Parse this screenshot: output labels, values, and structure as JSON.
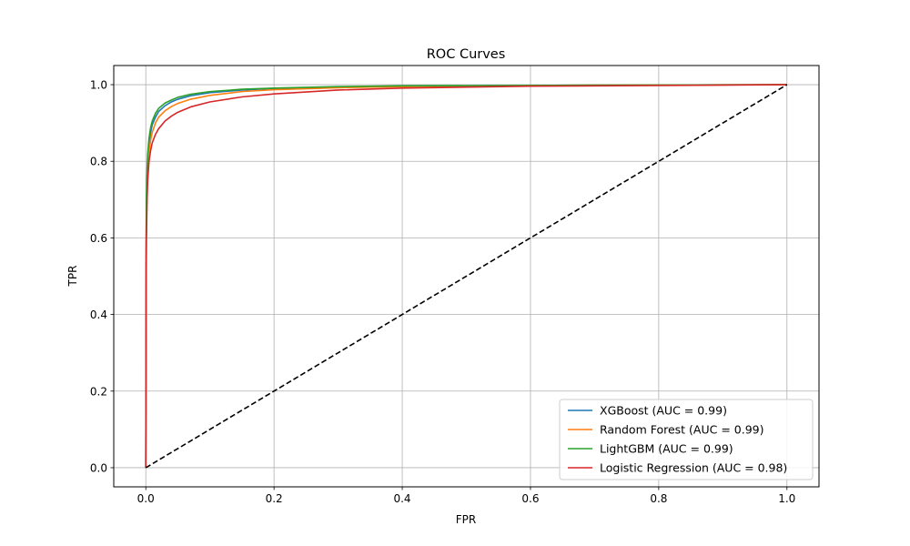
{
  "chart_data": {
    "type": "line",
    "title": "ROC Curves",
    "xlabel": "FPR",
    "ylabel": "TPR",
    "xlim": [
      -0.05,
      1.05
    ],
    "ylim": [
      -0.05,
      1.05
    ],
    "xticks": [
      0.0,
      0.2,
      0.4,
      0.6,
      0.8,
      1.0
    ],
    "yticks": [
      0.0,
      0.2,
      0.4,
      0.6,
      0.8,
      1.0
    ],
    "xtick_labels": [
      "0.0",
      "0.2",
      "0.4",
      "0.6",
      "0.8",
      "1.0"
    ],
    "ytick_labels": [
      "0.0",
      "0.2",
      "0.4",
      "0.6",
      "0.8",
      "1.0"
    ],
    "grid": true,
    "legend_position": "lower-right",
    "series": [
      {
        "name": "XGBoost (AUC = 0.99)",
        "color": "#1f77b4",
        "x": [
          0,
          0.0005,
          0.001,
          0.002,
          0.003,
          0.005,
          0.0075,
          0.01,
          0.015,
          0.02,
          0.03,
          0.04,
          0.05,
          0.07,
          0.1,
          0.15,
          0.2,
          0.3,
          0.4,
          0.6,
          0.8,
          1.0
        ],
        "y": [
          0,
          0.55,
          0.68,
          0.76,
          0.8,
          0.845,
          0.875,
          0.895,
          0.915,
          0.93,
          0.945,
          0.955,
          0.962,
          0.971,
          0.979,
          0.986,
          0.99,
          0.994,
          0.996,
          0.998,
          0.999,
          1.0
        ]
      },
      {
        "name": "Random Forest (AUC = 0.99)",
        "color": "#ff7f0e",
        "x": [
          0,
          0.0005,
          0.001,
          0.002,
          0.003,
          0.005,
          0.0075,
          0.01,
          0.015,
          0.02,
          0.03,
          0.04,
          0.05,
          0.07,
          0.1,
          0.15,
          0.2,
          0.3,
          0.4,
          0.6,
          0.8,
          1.0
        ],
        "y": [
          0,
          0.52,
          0.64,
          0.74,
          0.78,
          0.825,
          0.855,
          0.875,
          0.9,
          0.915,
          0.932,
          0.943,
          0.951,
          0.962,
          0.972,
          0.982,
          0.987,
          0.992,
          0.995,
          0.998,
          0.999,
          1.0
        ]
      },
      {
        "name": "LightGBM (AUC = 0.99)",
        "color": "#2ca02c",
        "x": [
          0,
          0.0005,
          0.001,
          0.002,
          0.003,
          0.005,
          0.0075,
          0.01,
          0.015,
          0.02,
          0.03,
          0.04,
          0.05,
          0.07,
          0.1,
          0.15,
          0.2,
          0.3,
          0.4,
          0.6,
          0.8,
          1.0
        ],
        "y": [
          0,
          0.58,
          0.7,
          0.78,
          0.82,
          0.86,
          0.888,
          0.905,
          0.925,
          0.938,
          0.952,
          0.96,
          0.967,
          0.975,
          0.982,
          0.988,
          0.991,
          0.995,
          0.997,
          0.998,
          0.999,
          1.0
        ]
      },
      {
        "name": "Logistic Regression (AUC = 0.98)",
        "color": "#d62728",
        "x": [
          0,
          0.0005,
          0.001,
          0.002,
          0.003,
          0.005,
          0.0075,
          0.01,
          0.015,
          0.02,
          0.03,
          0.04,
          0.05,
          0.07,
          0.1,
          0.15,
          0.2,
          0.3,
          0.4,
          0.6,
          0.8,
          1.0
        ],
        "y": [
          0,
          0.48,
          0.6,
          0.7,
          0.75,
          0.8,
          0.828,
          0.848,
          0.87,
          0.885,
          0.905,
          0.918,
          0.928,
          0.942,
          0.955,
          0.968,
          0.976,
          0.986,
          0.991,
          0.996,
          0.998,
          1.0
        ]
      }
    ],
    "reference_line": {
      "color": "#000000",
      "style": "dashed",
      "x": [
        0,
        1
      ],
      "y": [
        0,
        1
      ]
    }
  }
}
